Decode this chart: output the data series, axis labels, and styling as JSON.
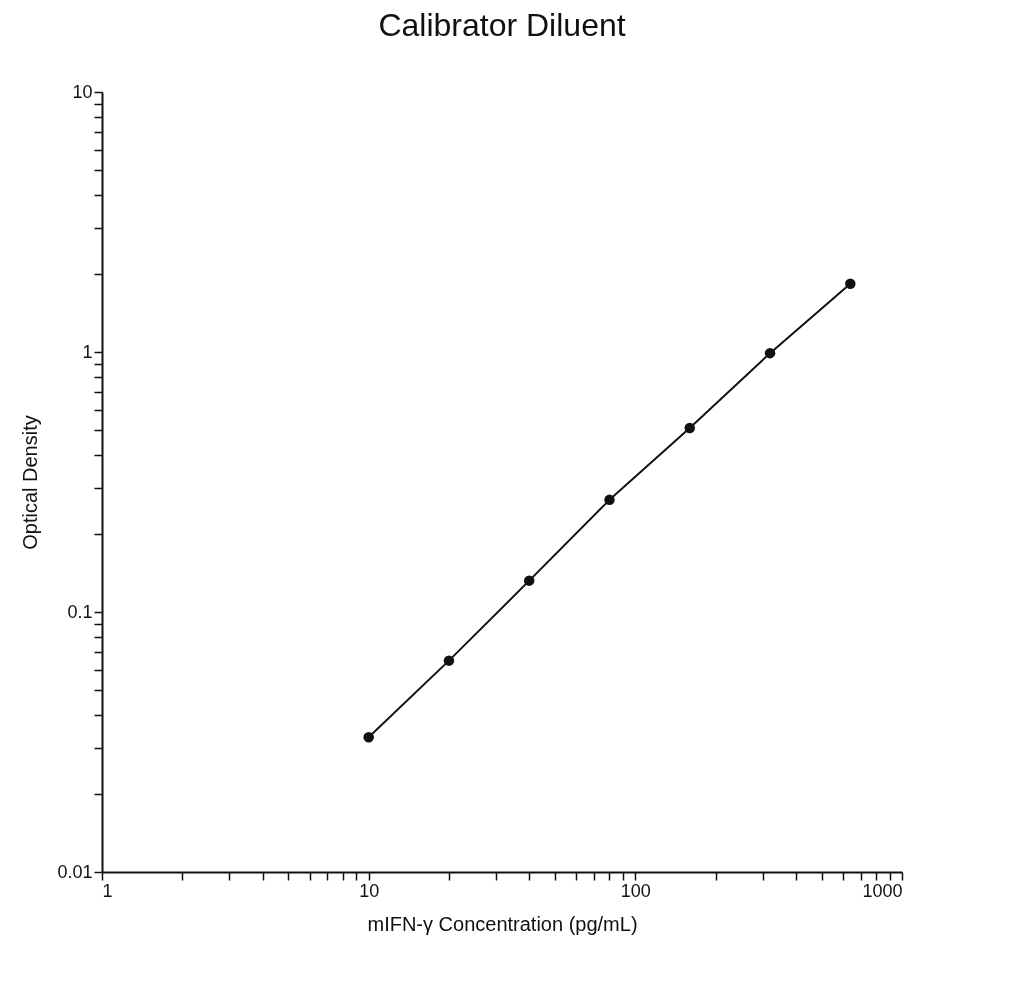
{
  "chart_data": {
    "type": "line",
    "title": "Calibrator Diluent",
    "xlabel": "mIFN-γ Concentration (pg/mL)",
    "ylabel": "Optical Density",
    "log": "xy",
    "grid": false,
    "marker": "circle",
    "line_style": "solid",
    "x": [
      10,
      20,
      40,
      80,
      160,
      320,
      640
    ],
    "series": [
      {
        "color": "#111111",
        "values": [
          0.033,
          0.065,
          0.132,
          0.27,
          0.51,
          0.99,
          1.83
        ]
      }
    ],
    "xlim": [
      1,
      1000
    ],
    "xticks": [
      1,
      {
        "value": 2,
        "label": null
      },
      {
        "value": 3,
        "label": null
      },
      {
        "value": 4,
        "label": null
      },
      {
        "value": 5,
        "label": null
      },
      {
        "value": 6,
        "label": null
      },
      {
        "value": 7,
        "label": null
      },
      {
        "value": 8,
        "label": null
      },
      {
        "value": 9,
        "label": null
      },
      10,
      {
        "value": 20,
        "label": null
      },
      {
        "value": 30,
        "label": null
      },
      {
        "value": 40,
        "label": null
      },
      {
        "value": 50,
        "label": null
      },
      {
        "value": 60,
        "label": null
      },
      {
        "value": 70,
        "label": null
      },
      {
        "value": 80,
        "label": null
      },
      {
        "value": 90,
        "label": null
      },
      100,
      {
        "value": 200,
        "label": null
      },
      {
        "value": 300,
        "label": null
      },
      {
        "value": 400,
        "label": null
      },
      {
        "value": 500,
        "label": null
      },
      {
        "value": 600,
        "label": null
      },
      {
        "value": 700,
        "label": null
      },
      {
        "value": 800,
        "label": null
      },
      {
        "value": 900,
        "label": null
      },
      1000
    ],
    "ylim": [
      0.01,
      10
    ],
    "yticks": [
      0.01,
      {
        "value": 0.02,
        "label": null
      },
      {
        "value": 0.03,
        "label": null
      },
      {
        "value": 0.04,
        "label": null
      },
      {
        "value": 0.05,
        "label": null
      },
      {
        "value": 0.06,
        "label": null
      },
      {
        "value": 0.07,
        "label": null
      },
      {
        "value": 0.08,
        "label": null
      },
      {
        "value": 0.09,
        "label": null
      },
      0.1,
      {
        "value": 0.2,
        "label": null
      },
      {
        "value": 0.3,
        "label": null
      },
      {
        "value": 0.4,
        "label": null
      },
      {
        "value": 0.5,
        "label": null
      },
      {
        "value": 0.6,
        "label": null
      },
      {
        "value": 0.7,
        "label": null
      },
      {
        "value": 0.8,
        "label": null
      },
      {
        "value": 0.9,
        "label": null
      },
      1,
      {
        "value": 2,
        "label": null
      },
      {
        "value": 3,
        "label": null
      },
      {
        "value": 4,
        "label": null
      },
      {
        "value": 5,
        "label": null
      },
      {
        "value": 6,
        "label": null
      },
      {
        "value": 7,
        "label": null
      },
      {
        "value": 8,
        "label": null
      },
      {
        "value": 9,
        "label": null
      },
      10
    ]
  }
}
